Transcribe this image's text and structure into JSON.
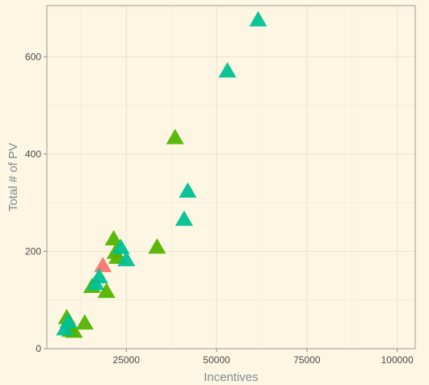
{
  "chart_data": {
    "type": "scatter",
    "title": "",
    "xlabel": "Incentives",
    "ylabel": "Total # of PV",
    "xlim": [
      3000,
      105000
    ],
    "ylim": [
      0,
      705
    ],
    "x_ticks": [
      25000,
      50000,
      75000,
      100000
    ],
    "x_tick_labels": [
      "25000",
      "50000",
      "75000",
      "100000"
    ],
    "y_ticks": [
      0,
      200,
      400,
      600
    ],
    "y_tick_labels": [
      "0",
      "200",
      "400",
      "600"
    ],
    "grid": true,
    "legend": "none",
    "marker": "triangle",
    "series": [
      {
        "color": "#F8766D",
        "points": [
          {
            "x": 18500,
            "y": 170
          }
        ]
      },
      {
        "color": "#53B400",
        "points": [
          {
            "x": 8500,
            "y": 63
          },
          {
            "x": 9500,
            "y": 37
          },
          {
            "x": 10500,
            "y": 35
          },
          {
            "x": 13500,
            "y": 52
          },
          {
            "x": 15500,
            "y": 127
          },
          {
            "x": 19500,
            "y": 117
          },
          {
            "x": 21500,
            "y": 225
          },
          {
            "x": 22000,
            "y": 197
          },
          {
            "x": 22500,
            "y": 187
          },
          {
            "x": 33500,
            "y": 208
          },
          {
            "x": 38500,
            "y": 433
          }
        ]
      },
      {
        "color": "#00C094",
        "points": [
          {
            "x": 8000,
            "y": 40
          },
          {
            "x": 9000,
            "y": 55
          },
          {
            "x": 16500,
            "y": 133
          },
          {
            "x": 17500,
            "y": 147
          },
          {
            "x": 23500,
            "y": 207
          },
          {
            "x": 25000,
            "y": 182
          },
          {
            "x": 41000,
            "y": 265
          },
          {
            "x": 42000,
            "y": 323
          },
          {
            "x": 53000,
            "y": 570
          },
          {
            "x": 61500,
            "y": 675
          }
        ]
      }
    ]
  }
}
